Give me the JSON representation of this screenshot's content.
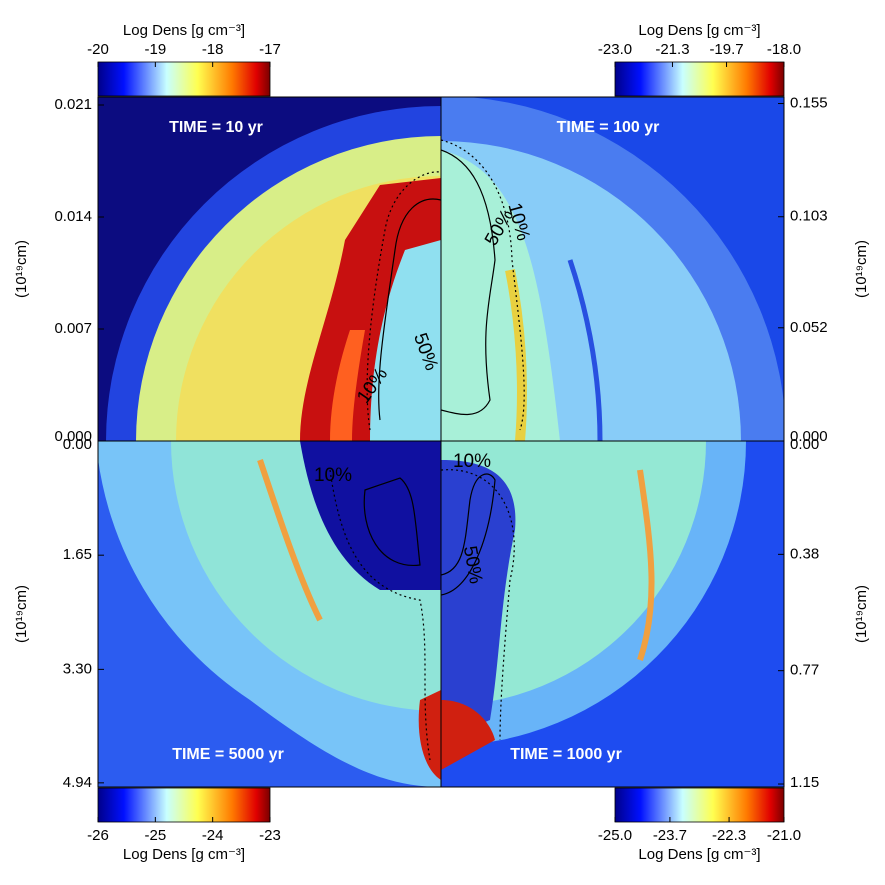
{
  "chart_data": [
    {
      "type": "density-map",
      "title": "TIME = 10 yr",
      "colorbar": {
        "label": "Log Dens [g cm⁻³]",
        "lim": [
          -20,
          -17
        ],
        "ticks": [
          -20,
          -19,
          -18,
          -17
        ]
      },
      "ylabel": "(10¹⁹cm)",
      "ylim": [
        0,
        0.0215
      ],
      "yticks": [
        {
          "value": 0,
          "label": "0.000"
        },
        0.007,
        0.014,
        0.021
      ],
      "contour_labels": [
        "10%",
        "50%"
      ]
    },
    {
      "type": "density-map",
      "title": "TIME = 100 yr",
      "colorbar": {
        "label": "Log Dens [g cm⁻³]",
        "lim": [
          -23,
          -18
        ],
        "ticks": [
          {
            "value": -23,
            "label": "-23.0"
          },
          -21.3,
          -19.7,
          {
            "value": -18,
            "label": "-18.0"
          }
        ]
      },
      "ylabel": "(10¹⁹cm)",
      "ylim": [
        0,
        0.158
      ],
      "yticks": [
        {
          "value": 0,
          "label": "0.000"
        },
        0.052,
        0.103,
        0.155
      ],
      "contour_labels": [
        "50%",
        "10%"
      ]
    },
    {
      "type": "density-map",
      "title": "TIME = 5000 yr",
      "colorbar": {
        "label": "Log Dens [g cm⁻³]",
        "lim": [
          -26,
          -23
        ],
        "ticks": [
          -26,
          -25,
          -24,
          -23
        ]
      },
      "ylabel": "(10¹⁹cm)",
      "ylim": [
        0,
        5.0
      ],
      "yticks": [
        {
          "value": 0,
          "label": "0.00"
        },
        1.65,
        {
          "value": 3.3,
          "label": "3.30"
        },
        4.94
      ],
      "inverted": true,
      "contour_labels": [
        "10%"
      ]
    },
    {
      "type": "density-map",
      "title": "TIME = 1000 yr",
      "colorbar": {
        "label": "Log Dens [g cm⁻³]",
        "lim": [
          -25,
          -21
        ],
        "ticks": [
          {
            "value": -25,
            "label": "-25.0"
          },
          -23.7,
          -22.3,
          {
            "value": -21,
            "label": "-21.0"
          }
        ]
      },
      "ylabel": "(10¹⁹cm)",
      "ylim": [
        0,
        1.16
      ],
      "yticks": [
        {
          "value": 0,
          "label": "0.00"
        },
        0.38,
        0.77,
        1.15
      ],
      "inverted": true,
      "contour_labels": [
        "10%",
        "50%"
      ]
    }
  ]
}
